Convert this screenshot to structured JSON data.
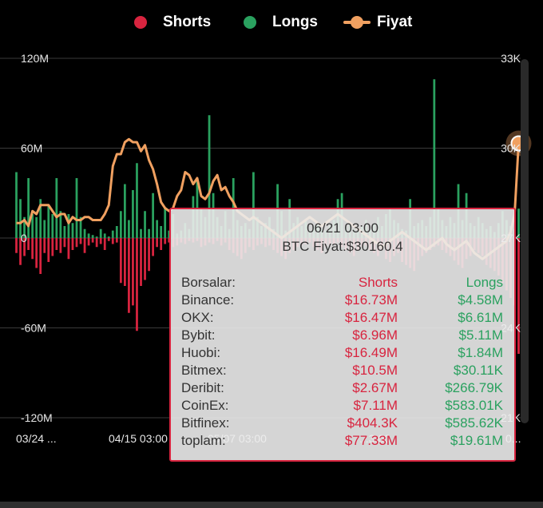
{
  "legend": {
    "shorts": {
      "label": "Shorts",
      "color": "#d8243f"
    },
    "longs": {
      "label": "Longs",
      "color": "#2aa15f"
    },
    "price": {
      "label": "Fiyat",
      "color": "#f0a060"
    }
  },
  "tooltip": {
    "date": "06/21 03:00",
    "price": "BTC Fiyat:$30160.4",
    "header": {
      "name": "Borsalar:",
      "short": "Shorts",
      "long": "Longs"
    },
    "rows": [
      {
        "name": "Binance:",
        "short": "$16.73M",
        "long": "$4.58M"
      },
      {
        "name": "OKX:",
        "short": "$16.47M",
        "long": "$6.61M"
      },
      {
        "name": "Bybit:",
        "short": "$6.96M",
        "long": "$5.11M"
      },
      {
        "name": "Huobi:",
        "short": "$16.49M",
        "long": "$1.84M"
      },
      {
        "name": "Bitmex:",
        "short": "$10.5M",
        "long": "$30.11K"
      },
      {
        "name": "Deribit:",
        "short": "$2.67M",
        "long": "$266.79K"
      },
      {
        "name": "CoinEx:",
        "short": "$7.11M",
        "long": "$583.01K"
      },
      {
        "name": "Bitfinex:",
        "short": "$404.3K",
        "long": "$585.62K"
      },
      {
        "name": "toplam:",
        "short": "$77.33M",
        "long": "$19.61M"
      }
    ]
  },
  "chart_data": {
    "type": "bar",
    "title": "",
    "y_left_ticks": [
      "120M",
      "60M",
      "0",
      "-60M",
      "-120M"
    ],
    "y_right_ticks": [
      "33K",
      "30K",
      "27K",
      "24K",
      "21K"
    ],
    "x_tick_labels": [
      "03/24 ...",
      "04/15 03:00",
      "05/07 03:00",
      "...3:00",
      "0..."
    ],
    "ylim_left": [
      -120,
      120
    ],
    "ylim_right": [
      21000,
      33000
    ],
    "grid": true,
    "series": [
      {
        "name": "Shorts",
        "unit": "M USD",
        "values": [
          -10,
          -18,
          -12,
          -8,
          -14,
          -20,
          -24,
          -10,
          -16,
          -12,
          -8,
          -10,
          -6,
          -14,
          -8,
          -6,
          -4,
          -10,
          -5,
          -3,
          -6,
          -4,
          -8,
          -2,
          -4,
          -3,
          -30,
          -32,
          -50,
          -45,
          -62,
          -32,
          -28,
          -22,
          -12,
          -6,
          -8,
          -4,
          -3,
          -6,
          -5,
          -3,
          -4,
          -2,
          -3,
          -2,
          -6,
          -5,
          -3,
          -4,
          -2,
          -5,
          -3,
          -8,
          -10,
          -12,
          -14,
          -10,
          -6,
          -8,
          -5,
          -4,
          -6,
          -5,
          -8,
          -10,
          -12,
          -14,
          -10,
          -8,
          -6,
          -5,
          -4,
          -3,
          -6,
          -8,
          -10,
          -6,
          -5,
          -4,
          -3,
          -6,
          -8,
          -10,
          -12,
          -8,
          -6,
          -5,
          -8,
          -10,
          -12,
          -8,
          -14,
          -16,
          -12,
          -10,
          -16,
          -18,
          -20,
          -22,
          -15,
          -12,
          -10,
          -8,
          -6,
          -5,
          -8,
          -10,
          -12,
          -15,
          -18,
          -20,
          -14,
          -12,
          -8,
          -10,
          -12,
          -18,
          -20,
          -22,
          -25,
          -30,
          -35,
          -40,
          -45,
          -77.33
        ]
      },
      {
        "name": "Longs",
        "unit": "M USD",
        "values": [
          44,
          26,
          14,
          40,
          16,
          14,
          26,
          12,
          22,
          16,
          40,
          18,
          8,
          16,
          10,
          40,
          14,
          6,
          3,
          2,
          1,
          6,
          3,
          1,
          5,
          8,
          18,
          36,
          12,
          32,
          50,
          6,
          18,
          6,
          30,
          12,
          8,
          20,
          5,
          16,
          3,
          5,
          10,
          6,
          28,
          40,
          20,
          14,
          82,
          30,
          14,
          8,
          18,
          6,
          40,
          12,
          8,
          10,
          6,
          44,
          14,
          8,
          10,
          14,
          6,
          36,
          18,
          5,
          26,
          10,
          14,
          8,
          12,
          5,
          8,
          10,
          6,
          5,
          8,
          12,
          26,
          30,
          8,
          10,
          6,
          5,
          8,
          12,
          6,
          10,
          14,
          8,
          16,
          20,
          12,
          10,
          6,
          5,
          26,
          8,
          10,
          12,
          8,
          14,
          106,
          20,
          12,
          8,
          14,
          10,
          36,
          12,
          30,
          10,
          8,
          14,
          10,
          6,
          8,
          4,
          10,
          18,
          12,
          8,
          6,
          19.61
        ]
      },
      {
        "name": "Fiyat",
        "unit": "USD",
        "values": [
          27500,
          27500,
          27600,
          27400,
          27900,
          27800,
          28100,
          28100,
          28100,
          27900,
          27700,
          27800,
          27800,
          27500,
          27700,
          27600,
          27600,
          27700,
          27700,
          27600,
          27600,
          27600,
          27800,
          28100,
          29400,
          29800,
          29800,
          30200,
          30300,
          30200,
          30200,
          29900,
          30100,
          29600,
          29300,
          28800,
          28200,
          28000,
          27900,
          28000,
          28400,
          28600,
          29200,
          29100,
          28800,
          29000,
          28400,
          28300,
          28500,
          28900,
          29100,
          28600,
          28700,
          28400,
          28200,
          27900,
          27800,
          27700,
          27600,
          27700,
          27600,
          27500,
          27400,
          27300,
          27200,
          27100,
          27000,
          27100,
          27200,
          27300,
          27400,
          27500,
          27600,
          27700,
          27600,
          27500,
          27400,
          27500,
          27600,
          27700,
          27800,
          27700,
          27600,
          27500,
          27400,
          27300,
          27200,
          27100,
          27000,
          26900,
          26800,
          26700,
          26800,
          26900,
          27000,
          27100,
          27200,
          27100,
          27000,
          26900,
          26800,
          26700,
          26600,
          26700,
          26800,
          26900,
          27000,
          26800,
          26700,
          26600,
          26700,
          26800,
          26900,
          26700,
          26500,
          26400,
          26300,
          26400,
          26500,
          26600,
          26700,
          26800,
          26900,
          27200,
          27800,
          30160.4
        ]
      }
    ]
  }
}
